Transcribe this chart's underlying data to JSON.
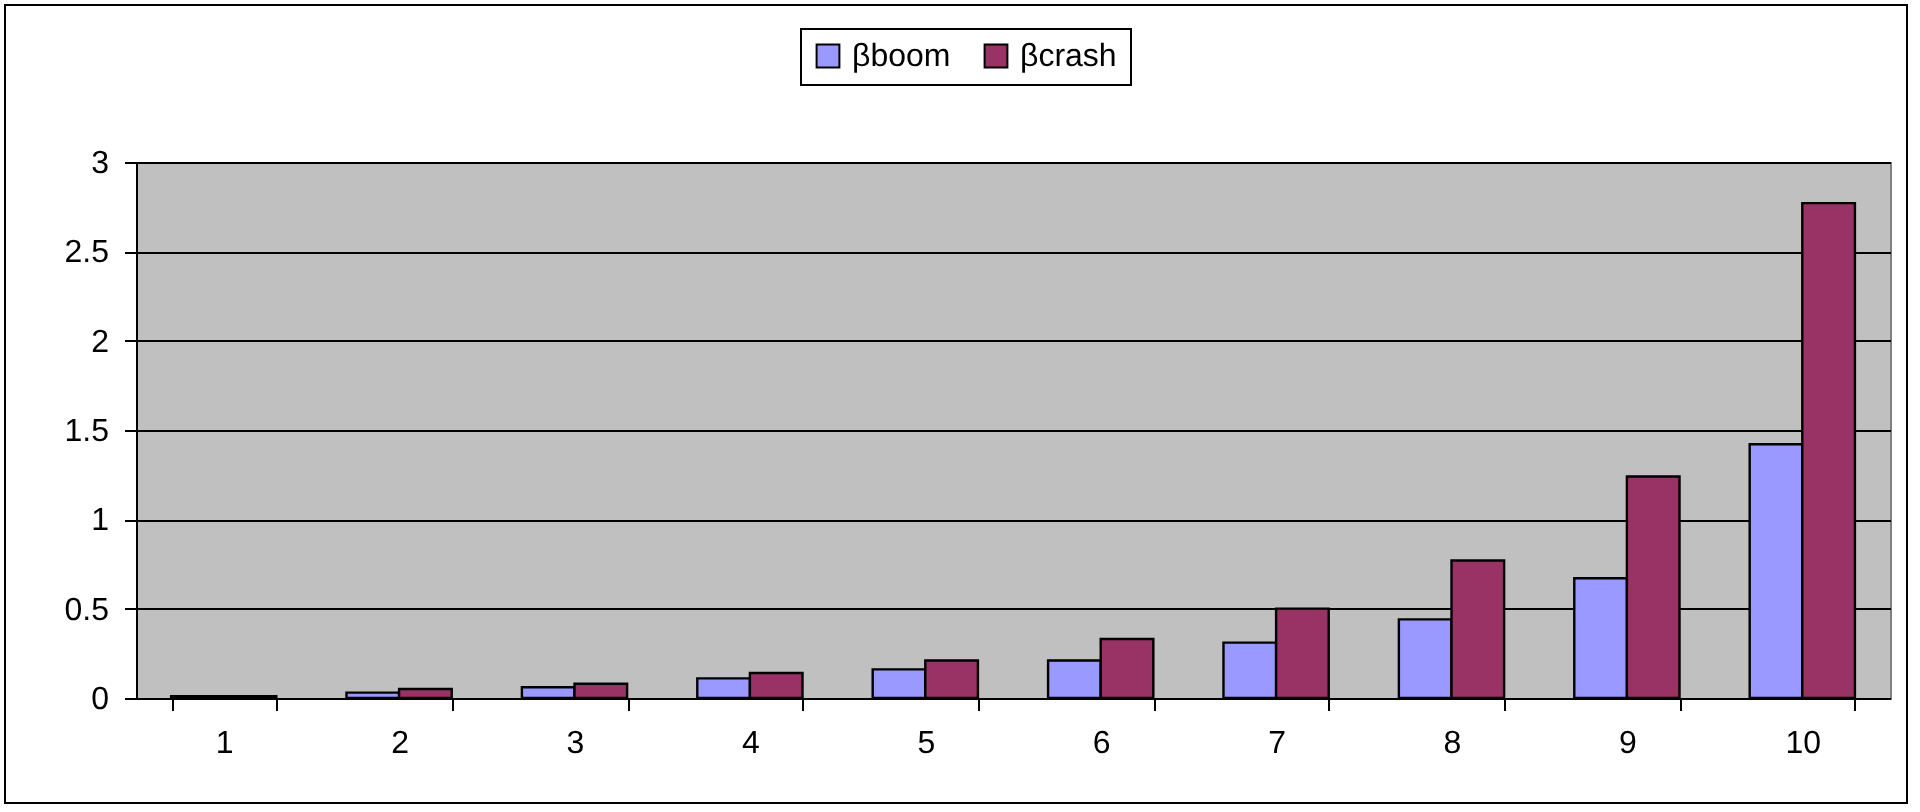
{
  "chart_data": {
    "type": "bar",
    "categories": [
      "1",
      "2",
      "3",
      "4",
      "5",
      "6",
      "7",
      "8",
      "9",
      "10"
    ],
    "series": [
      {
        "name": "βboom",
        "color": "#9999ff",
        "values": [
          0.01,
          0.03,
          0.06,
          0.11,
          0.16,
          0.21,
          0.31,
          0.44,
          0.67,
          1.42
        ]
      },
      {
        "name": "βcrash",
        "color": "#993366",
        "values": [
          0.01,
          0.05,
          0.08,
          0.14,
          0.21,
          0.33,
          0.5,
          0.77,
          1.24,
          2.77
        ]
      }
    ],
    "ylim": [
      0,
      3
    ],
    "yticks": [
      0,
      0.5,
      1,
      1.5,
      2,
      2.5,
      3
    ],
    "grid": "y",
    "legend": "top"
  }
}
